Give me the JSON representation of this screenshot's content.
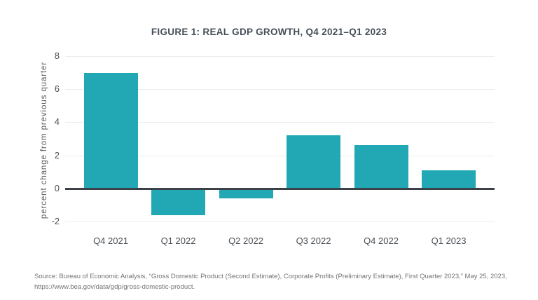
{
  "figure": {
    "title": "FIGURE 1: REAL GDP GROWTH, Q4 2021–Q1 2023",
    "y_axis_label": "percent change from previous quarter",
    "source_line1": "Source: Bureau of Economic Analysis, “Gross Domestic Product (Second Estimate), Corporate Profits (Preliminary Estimate), First Quarter 2023,” May 25, 2023,",
    "source_line2": "https://www.bea.gov/data/gdp/gross-domestic-product."
  },
  "chart_data": {
    "type": "bar",
    "title": "FIGURE 1: REAL GDP GROWTH, Q4 2021–Q1 2023",
    "categories": [
      "Q4 2021",
      "Q1 2022",
      "Q2 2022",
      "Q3 2022",
      "Q4 2022",
      "Q1 2023"
    ],
    "values": [
      7.0,
      -1.6,
      -0.6,
      3.2,
      2.6,
      1.1
    ],
    "xlabel": "",
    "ylabel": "percent change from previous quarter",
    "ylim": [
      -2,
      8
    ],
    "yticks": [
      8,
      6,
      4,
      2,
      0,
      -2
    ],
    "grid": true,
    "legend": "none",
    "bar_color": "#22a8b4",
    "zero_line_color": "#3c4147",
    "gridline_color": "#e9ecee"
  }
}
